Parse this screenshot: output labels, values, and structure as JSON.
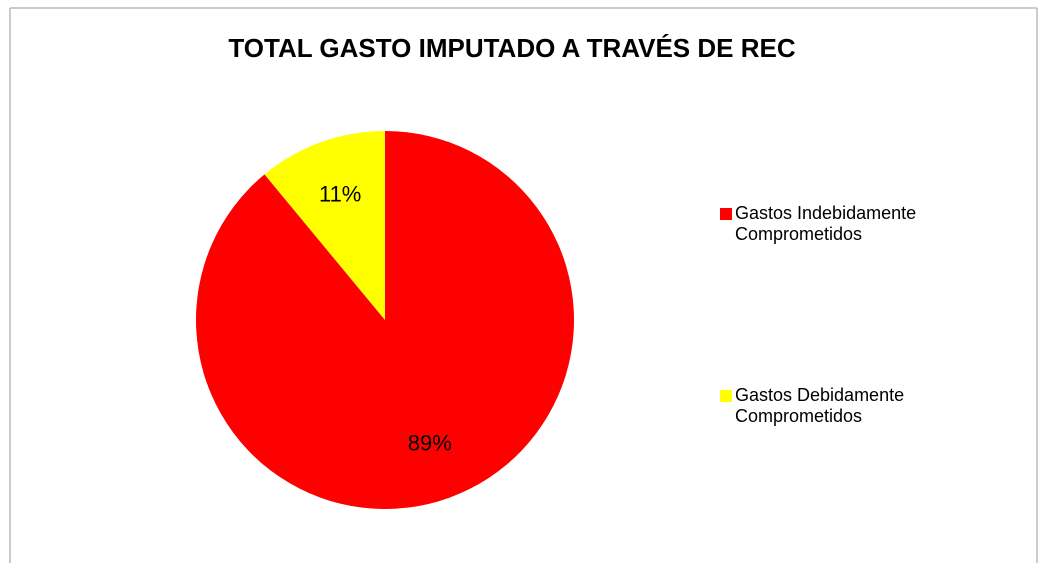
{
  "chart_data": {
    "type": "pie",
    "title": "TOTAL GASTO IMPUTADO A TRAVÉS DE REC",
    "categories": [
      "Gastos Indebidamente Comprometidos",
      "Gastos Debidamente Comprometidos"
    ],
    "values": [
      89,
      11
    ],
    "value_labels": [
      "89%",
      "11%"
    ],
    "colors": [
      "#ff0000",
      "#ffff00"
    ],
    "legend": "right"
  }
}
